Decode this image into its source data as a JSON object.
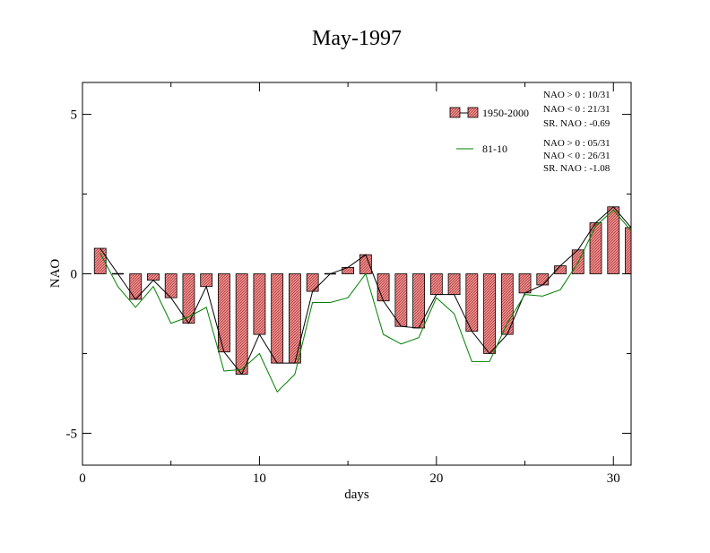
{
  "chart_data": {
    "type": "bar",
    "title": "May-1997",
    "xlabel": "days",
    "ylabel": "NAO",
    "xlim": [
      0,
      31
    ],
    "ylim": [
      -6,
      6
    ],
    "xticks": [
      0,
      10,
      20,
      30
    ],
    "yticks": [
      -5,
      0,
      5
    ],
    "xtick_labels": [
      "0",
      "10",
      "20",
      "30"
    ],
    "ytick_labels": [
      "-5",
      "0",
      "5"
    ],
    "grid": false,
    "legend_position": "top-right",
    "days": [
      1,
      2,
      3,
      4,
      5,
      6,
      7,
      8,
      9,
      10,
      11,
      12,
      13,
      14,
      15,
      16,
      17,
      18,
      19,
      20,
      21,
      22,
      23,
      24,
      25,
      26,
      27,
      28,
      29,
      30,
      31
    ],
    "series": [
      {
        "name": "1950-2000",
        "kind": "bar+line",
        "color": "#e06666",
        "line_color": "#000000",
        "values": [
          0.8,
          0.0,
          -0.8,
          -0.2,
          -0.75,
          -1.55,
          -0.4,
          -2.45,
          -3.15,
          -1.9,
          -2.8,
          -2.8,
          -0.55,
          0.0,
          0.2,
          0.6,
          -0.85,
          -1.65,
          -1.7,
          -0.65,
          -0.65,
          -1.8,
          -2.5,
          -1.9,
          -0.6,
          -0.35,
          0.25,
          0.75,
          1.6,
          2.1,
          1.45
        ]
      },
      {
        "name": "81-10",
        "kind": "line",
        "color": "#008000",
        "values": [
          0.65,
          -0.4,
          -1.05,
          -0.4,
          -1.55,
          -1.35,
          -1.05,
          -3.05,
          -3.0,
          -2.5,
          -3.7,
          -3.15,
          -0.9,
          -0.9,
          -0.75,
          0.0,
          -1.9,
          -2.2,
          -2.0,
          -0.75,
          -1.25,
          -2.75,
          -2.75,
          -1.55,
          -0.65,
          -0.7,
          -0.5,
          0.35,
          1.5,
          2.0,
          1.35
        ]
      }
    ],
    "stats": [
      [
        "NAO > 0 : 10/31",
        "NAO < 0 : 21/31",
        "SR. NAO : -0.69"
      ],
      [
        "NAO > 0 : 05/31",
        "NAO < 0 : 26/31",
        "SR. NAO : -1.08"
      ]
    ]
  }
}
